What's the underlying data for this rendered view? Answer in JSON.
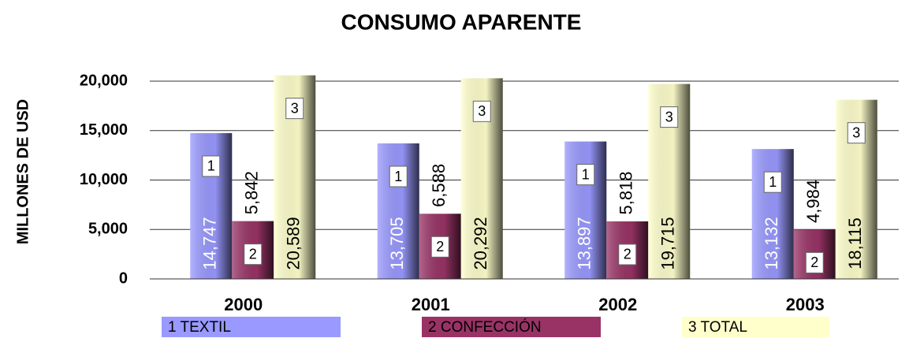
{
  "chart_data": {
    "type": "bar",
    "title": "CONSUMO APARENTE",
    "y_label": "MILLONES DE USD",
    "categories": [
      "2000",
      "2001",
      "2002",
      "2003"
    ],
    "series": [
      {
        "name": "1 TEXTIL",
        "marker": "1",
        "color": "#9999ff",
        "values": [
          14747,
          13705,
          13897,
          13132
        ],
        "value_labels": [
          "14,747",
          "13,705",
          "13,897",
          "13,132"
        ]
      },
      {
        "name": "2 CONFECCIÓN",
        "marker": "2",
        "color": "#993366",
        "values": [
          5842,
          6588,
          5818,
          4984
        ],
        "value_labels": [
          "5,842",
          "6,588",
          "5,818",
          "4,984"
        ]
      },
      {
        "name": "3 TOTAL",
        "marker": "3",
        "color": "#ffffcc",
        "values": [
          20589,
          20292,
          19715,
          18115
        ],
        "value_labels": [
          "20,589",
          "20,292",
          "19,715",
          "18,115"
        ]
      }
    ],
    "ylim": [
      0,
      20000
    ],
    "yticks": [
      0,
      {
        "value": 5000,
        "label": "5,000"
      },
      {
        "value": 10000,
        "label": "10,000"
      },
      {
        "value": 15000,
        "label": "15,000"
      },
      {
        "value": 20000,
        "label": "20,000"
      }
    ],
    "grid": true
  }
}
